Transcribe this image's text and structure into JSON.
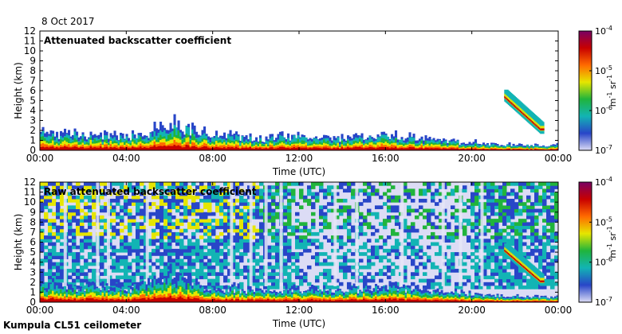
{
  "header": {
    "date": "8 Oct 2017"
  },
  "footer": {
    "instrument": "Kumpula CL51 ceilometer"
  },
  "colorbar": {
    "colors": [
      "#dcdcf5",
      "#2846c8",
      "#12b4b4",
      "#20b43c",
      "#e6e600",
      "#ff6a00",
      "#c80000",
      "#7a0064"
    ],
    "tick_labels": [
      {
        "base": "10",
        "exp": "-4"
      },
      {
        "base": "10",
        "exp": "-5"
      },
      {
        "base": "10",
        "exp": "-6"
      },
      {
        "base": "10",
        "exp": "-7"
      }
    ],
    "unit_label": {
      "m": "m",
      "m_exp": "-1",
      "sr": "sr",
      "sr_exp": "-1"
    }
  },
  "chart_data": [
    {
      "type": "heatmap",
      "title": "Attenuated backscatter coefficient",
      "xlabel": "Time (UTC)",
      "ylabel": "Height (km)",
      "xlim": [
        0,
        24
      ],
      "ylim": [
        0,
        12
      ],
      "x_ticks": [
        "00:00",
        "04:00",
        "08:00",
        "12:00",
        "16:00",
        "20:00",
        "00:00"
      ],
      "y_ticks": [
        "0",
        "1",
        "2",
        "3",
        "4",
        "5",
        "6",
        "7",
        "8",
        "9",
        "10",
        "11",
        "12"
      ],
      "color_scale": {
        "min": 1e-07,
        "max": 0.0001,
        "scale": "log",
        "unit": "m-1 sr-1"
      },
      "boundary_layer_top_km": [
        [
          0,
          1.8
        ],
        [
          2,
          1.6
        ],
        [
          4,
          1.5
        ],
        [
          5.5,
          2.2
        ],
        [
          6,
          2.8
        ],
        [
          8,
          1.5
        ],
        [
          10,
          1.3
        ],
        [
          12,
          1.4
        ],
        [
          14,
          1.2
        ],
        [
          16,
          1.6
        ],
        [
          18,
          1.1
        ],
        [
          20,
          0.8
        ],
        [
          21,
          0.6
        ],
        [
          24,
          0.5
        ]
      ],
      "elevated_layers": [
        {
          "t_start": 21.5,
          "t_end": 23.2,
          "h_top_km": 5.2,
          "h_bottom_km": 1.5,
          "note": "descending cloud layer"
        }
      ]
    },
    {
      "type": "heatmap",
      "title": "Raw attenuated backscatter coefficient",
      "xlabel": "Time (UTC)",
      "ylabel": "Height (km)",
      "xlim": [
        0,
        24
      ],
      "ylim": [
        0,
        12
      ],
      "x_ticks": [
        "00:00",
        "04:00",
        "08:00",
        "12:00",
        "16:00",
        "20:00",
        "00:00"
      ],
      "y_ticks": [
        "0",
        "1",
        "2",
        "3",
        "4",
        "5",
        "6",
        "7",
        "8",
        "9",
        "10",
        "11",
        "12"
      ],
      "color_scale": {
        "min": 1e-07,
        "max": 0.0001,
        "scale": "log",
        "unit": "m-1 sr-1"
      },
      "noise_regions": [
        {
          "t_start": 0,
          "t_end": 11.5,
          "level": "high"
        },
        {
          "t_start": 11.5,
          "t_end": 20,
          "level": "medium"
        },
        {
          "t_start": 20,
          "t_end": 24,
          "level": "high"
        }
      ],
      "elevated_layers": [
        {
          "t_start": 21.5,
          "t_end": 23.2,
          "h_top_km": 5.0,
          "h_bottom_km": 1.5,
          "note": "descending cloud layer"
        }
      ]
    }
  ]
}
